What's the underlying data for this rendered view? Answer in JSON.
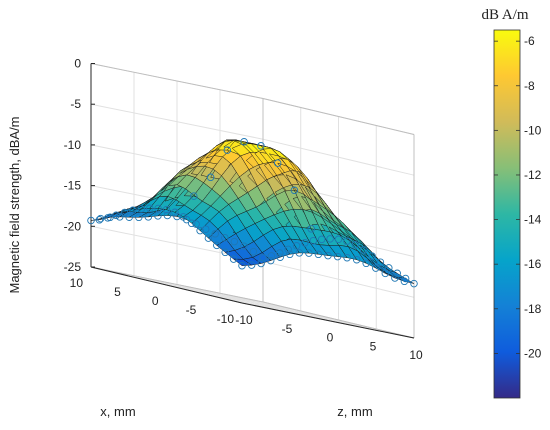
{
  "chart_data": {
    "type": "surface3d",
    "zlabel": "Magnetic field strength, dBA/m",
    "xlabel": "x, mm",
    "ylabel": "z, mm",
    "x_ticks": [
      "10",
      "5",
      "0",
      "-5",
      "-10"
    ],
    "y_ticks": [
      "-10",
      "-5",
      "0",
      "5",
      "10"
    ],
    "z_ticks": [
      "0",
      "-5",
      "-10",
      "-15",
      "-20",
      "-25"
    ],
    "xlim": [
      -10,
      10
    ],
    "ylim": [
      -10,
      10
    ],
    "zlim": [
      -25,
      0
    ],
    "grid": true,
    "surface_model": {
      "description_in_data_units": "peak near x=0, z=0",
      "peak_value": -5.5,
      "x_range": [
        -10,
        10
      ],
      "z_range": [
        -10,
        10
      ],
      "grid_points": 19
    },
    "corner_values": {
      "x_10_z_-10": -20.5,
      "x_10_z_10": -20.8,
      "x_-10_z_-10": -21.8,
      "x_-10_z_10": -19.5
    },
    "colorbar": {
      "title": "dB A/m",
      "range": [
        -22,
        -5.5
      ],
      "ticks": [
        "-6",
        "-8",
        "-10",
        "-12",
        "-14",
        "-16",
        "-18",
        "-20"
      ],
      "colormap": "parula",
      "colors": [
        "#352a87",
        "#0f5cdd",
        "#1481d6",
        "#06a4ca",
        "#2eb7a4",
        "#87bf77",
        "#d1bb59",
        "#fec832",
        "#f9fb0e"
      ]
    },
    "marker_color": "#1f77b4"
  }
}
